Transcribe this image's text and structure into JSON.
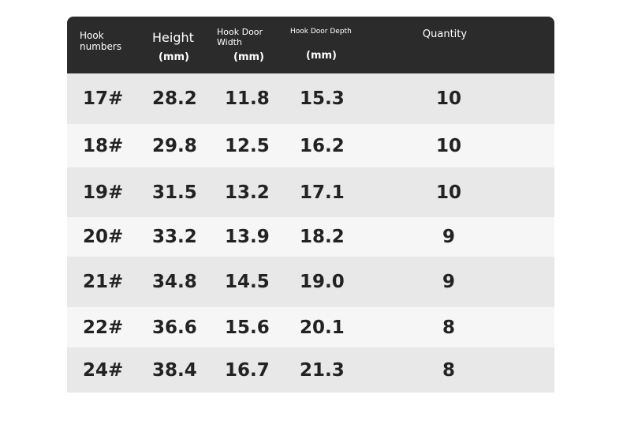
{
  "table": {
    "headers": [
      {
        "label": "Hook numbers"
      },
      {
        "label": "Height",
        "unit": "(mm)"
      },
      {
        "label": "Hook Door Width",
        "unit": "(mm)"
      },
      {
        "label": "Hook Door Depth",
        "unit": "(mm)"
      },
      {
        "label": "Quantity"
      }
    ],
    "rows": [
      [
        "17#",
        "28.2",
        "11.8",
        "15.3",
        "10"
      ],
      [
        "18#",
        "29.8",
        "12.5",
        "16.2",
        "10"
      ],
      [
        "19#",
        "31.5",
        "13.2",
        "17.1",
        "10"
      ],
      [
        "20#",
        "33.2",
        "13.9",
        "18.2",
        "9"
      ],
      [
        "21#",
        "34.8",
        "14.5",
        "19.0",
        "9"
      ],
      [
        "22#",
        "36.6",
        "15.6",
        "20.1",
        "8"
      ],
      [
        "24#",
        "38.4",
        "16.7",
        "21.3",
        "8"
      ]
    ]
  }
}
